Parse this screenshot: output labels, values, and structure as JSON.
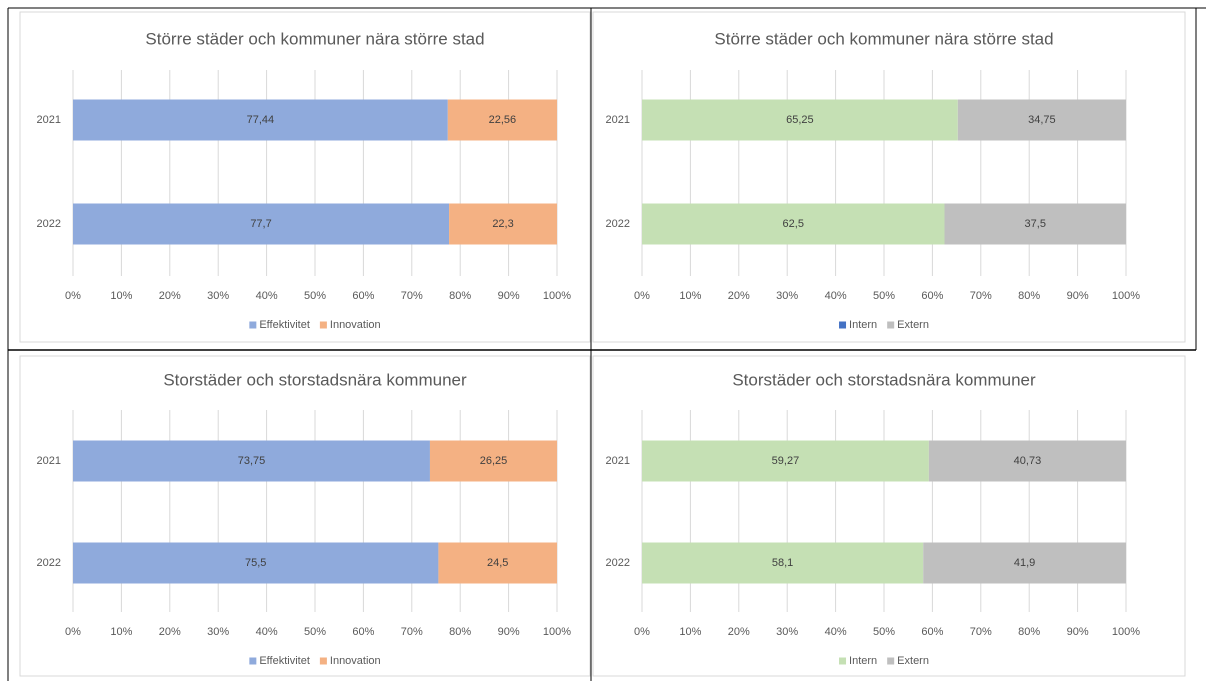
{
  "chart_data": [
    {
      "type": "bar",
      "orientation": "horizontal",
      "stacked": true,
      "title": "Större städer och kommuner nära större stad",
      "categories": [
        "2021",
        "2022"
      ],
      "series": [
        {
          "name": "Effektivitet",
          "color": "#8faadc",
          "values": [
            77.44,
            77.7
          ],
          "value_labels": [
            "77,44",
            "77,7"
          ]
        },
        {
          "name": "Innovation",
          "color": "#f4b183",
          "values": [
            22.56,
            22.3
          ],
          "value_labels": [
            "22,56",
            "22,3"
          ]
        }
      ],
      "xlim": [
        0,
        100
      ],
      "xticks": [
        {
          "value": 0,
          "label": "0%"
        },
        {
          "value": 10,
          "label": "10%"
        },
        {
          "value": 20,
          "label": "20%"
        },
        {
          "value": 30,
          "label": "30%"
        },
        {
          "value": 40,
          "label": "40%"
        },
        {
          "value": 50,
          "label": "50%"
        },
        {
          "value": 60,
          "label": "60%"
        },
        {
          "value": 70,
          "label": "70%"
        },
        {
          "value": 80,
          "label": "80%"
        },
        {
          "value": 90,
          "label": "90%"
        },
        {
          "value": 100,
          "label": "100%"
        }
      ],
      "grid": true,
      "legend": "bottom"
    },
    {
      "type": "bar",
      "orientation": "horizontal",
      "stacked": true,
      "title": "Större städer och kommuner nära större stad",
      "categories": [
        "2021",
        "2022"
      ],
      "series": [
        {
          "name": "Intern",
          "color": "#c5e0b4",
          "legend_color": "#4472c4",
          "values": [
            65.25,
            62.5
          ],
          "value_labels": [
            "65,25",
            "62,5"
          ]
        },
        {
          "name": "Extern",
          "color": "#bfbfbf",
          "values": [
            34.75,
            37.5
          ],
          "value_labels": [
            "34,75",
            "37,5"
          ]
        }
      ],
      "xlim": [
        0,
        100
      ],
      "xticks": [
        {
          "value": 0,
          "label": "0%"
        },
        {
          "value": 10,
          "label": "10%"
        },
        {
          "value": 20,
          "label": "20%"
        },
        {
          "value": 30,
          "label": "30%"
        },
        {
          "value": 40,
          "label": "40%"
        },
        {
          "value": 50,
          "label": "50%"
        },
        {
          "value": 60,
          "label": "60%"
        },
        {
          "value": 70,
          "label": "70%"
        },
        {
          "value": 80,
          "label": "80%"
        },
        {
          "value": 90,
          "label": "90%"
        },
        {
          "value": 100,
          "label": "100%"
        }
      ],
      "grid": true,
      "legend": "bottom"
    },
    {
      "type": "bar",
      "orientation": "horizontal",
      "stacked": true,
      "title": "Storstäder och storstadsnära kommuner",
      "categories": [
        "2021",
        "2022"
      ],
      "series": [
        {
          "name": "Effektivitet",
          "color": "#8faadc",
          "values": [
            73.75,
            75.5
          ],
          "value_labels": [
            "73,75",
            "75,5"
          ]
        },
        {
          "name": "Innovation",
          "color": "#f4b183",
          "values": [
            26.25,
            24.5
          ],
          "value_labels": [
            "26,25",
            "24,5"
          ]
        }
      ],
      "xlim": [
        0,
        100
      ],
      "xticks": [
        {
          "value": 0,
          "label": "0%"
        },
        {
          "value": 10,
          "label": "10%"
        },
        {
          "value": 20,
          "label": "20%"
        },
        {
          "value": 30,
          "label": "30%"
        },
        {
          "value": 40,
          "label": "40%"
        },
        {
          "value": 50,
          "label": "50%"
        },
        {
          "value": 60,
          "label": "60%"
        },
        {
          "value": 70,
          "label": "70%"
        },
        {
          "value": 80,
          "label": "80%"
        },
        {
          "value": 90,
          "label": "90%"
        },
        {
          "value": 100,
          "label": "100%"
        }
      ],
      "grid": true,
      "legend": "bottom"
    },
    {
      "type": "bar",
      "orientation": "horizontal",
      "stacked": true,
      "title": "Storstäder och storstadsnära kommuner",
      "categories": [
        "2021",
        "2022"
      ],
      "series": [
        {
          "name": "Intern",
          "color": "#c5e0b4",
          "values": [
            59.27,
            58.1
          ],
          "value_labels": [
            "59,27",
            "58,1"
          ]
        },
        {
          "name": "Extern",
          "color": "#bfbfbf",
          "values": [
            40.73,
            41.9
          ],
          "value_labels": [
            "40,73",
            "41,9"
          ]
        }
      ],
      "xlim": [
        0,
        100
      ],
      "xticks": [
        {
          "value": 0,
          "label": "0%"
        },
        {
          "value": 10,
          "label": "10%"
        },
        {
          "value": 20,
          "label": "20%"
        },
        {
          "value": 30,
          "label": "30%"
        },
        {
          "value": 40,
          "label": "40%"
        },
        {
          "value": 50,
          "label": "50%"
        },
        {
          "value": 60,
          "label": "60%"
        },
        {
          "value": 70,
          "label": "70%"
        },
        {
          "value": 80,
          "label": "80%"
        },
        {
          "value": 90,
          "label": "90%"
        },
        {
          "value": 100,
          "label": "100%"
        }
      ],
      "grid": true,
      "legend": "bottom"
    }
  ]
}
